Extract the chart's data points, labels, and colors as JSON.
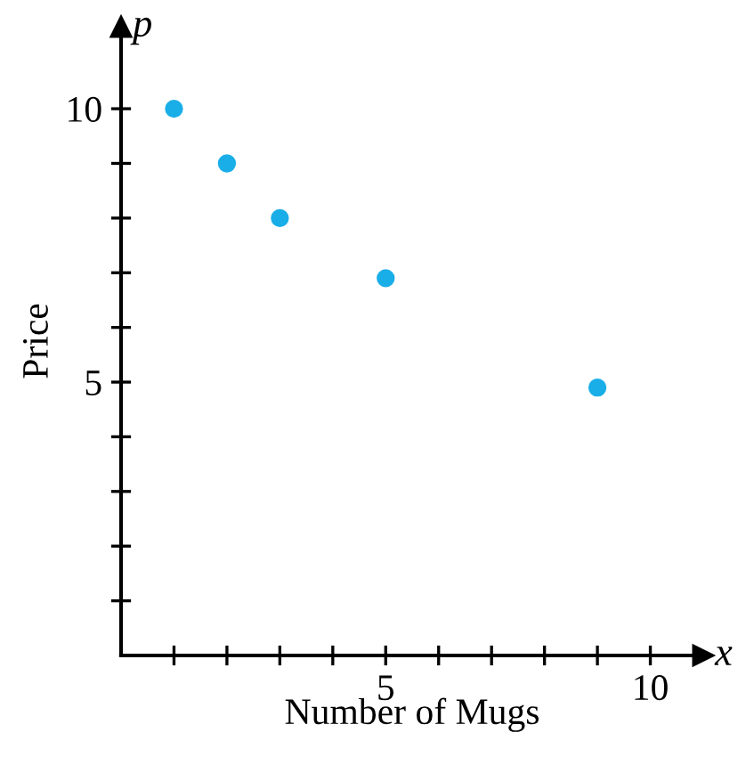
{
  "chart_data": {
    "type": "scatter",
    "xlabel": "Number of Mugs",
    "ylabel": "Price",
    "annotations": [
      "x",
      "p"
    ],
    "x": [
      1,
      2,
      3,
      5,
      9
    ],
    "values": [
      10,
      9,
      8,
      6.9,
      4.9
    ],
    "color": "#1aaee8",
    "marker": "circle",
    "grid": false,
    "xlim": [
      0,
      11
    ],
    "ylim": [
      0,
      11.5
    ],
    "xticks": [
      {
        "value": 1,
        "label": null
      },
      {
        "value": 2,
        "label": null
      },
      {
        "value": 3,
        "label": null
      },
      {
        "value": 4,
        "label": null
      },
      5,
      {
        "value": 6,
        "label": null
      },
      {
        "value": 7,
        "label": null
      },
      {
        "value": 8,
        "label": null
      },
      {
        "value": 9,
        "label": null
      },
      10
    ],
    "yticks": [
      {
        "value": 1,
        "label": null
      },
      {
        "value": 2,
        "label": null
      },
      {
        "value": 3,
        "label": null
      },
      {
        "value": 4,
        "label": null
      },
      5,
      {
        "value": 6,
        "label": null
      },
      {
        "value": 7,
        "label": null
      },
      {
        "value": 8,
        "label": null
      },
      {
        "value": 9,
        "label": null
      },
      10
    ]
  }
}
